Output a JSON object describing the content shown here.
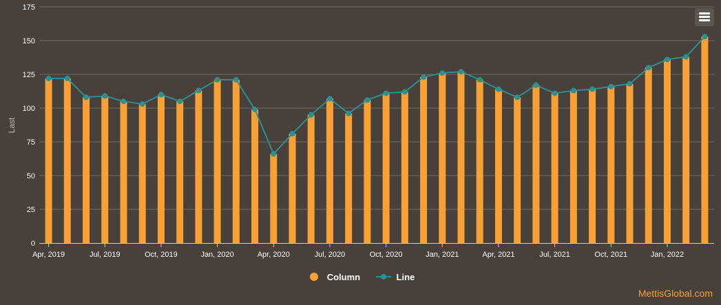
{
  "chart_data": {
    "type": "bar",
    "ylabel": "Last",
    "ylim": [
      0,
      175
    ],
    "y_ticks": [
      "0",
      "25",
      "50",
      "75",
      "100",
      "125",
      "150",
      "175"
    ],
    "x_ticks": [
      "Apr, 2019",
      "Jul, 2019",
      "Oct, 2019",
      "Jan, 2020",
      "Apr, 2020",
      "Jul, 2020",
      "Oct, 2020",
      "Jan, 2021",
      "Apr, 2021",
      "Jul, 2021",
      "Oct, 2021",
      "Jan, 2022"
    ],
    "grid": true,
    "legend": "bottom-center",
    "categories": [
      "Apr 2019",
      "May 2019",
      "Jun 2019",
      "Jul 2019",
      "Aug 2019",
      "Sep 2019",
      "Oct 2019",
      "Nov 2019",
      "Dec 2019",
      "Jan 2020",
      "Feb 2020",
      "Mar 2020",
      "Apr 2020",
      "May 2020",
      "Jun 2020",
      "Jul 2020",
      "Aug 2020",
      "Sep 2020",
      "Oct 2020",
      "Nov 2020",
      "Dec 2020",
      "Jan 2021",
      "Feb 2021",
      "Mar 2021",
      "Apr 2021",
      "May 2021",
      "Jun 2021",
      "Jul 2021",
      "Aug 2021",
      "Sep 2021",
      "Oct 2021",
      "Nov 2021",
      "Dec 2021",
      "Jan 2022",
      "Feb 2022",
      "Mar 2022"
    ],
    "series": [
      {
        "name": "Column",
        "type": "bar",
        "color": "#f7a035",
        "values": [
          122,
          122,
          108,
          109,
          105,
          103,
          110,
          105,
          113,
          121,
          121,
          99,
          66,
          81,
          95,
          107,
          96,
          106,
          111,
          112,
          123,
          126,
          127,
          121,
          114,
          108,
          117,
          111,
          113,
          114,
          116,
          118,
          130,
          136,
          138,
          153
        ]
      },
      {
        "name": "Line",
        "type": "line",
        "color": "#2b908f",
        "values": [
          122,
          122,
          108,
          109,
          105,
          103,
          110,
          105,
          113,
          121,
          121,
          99,
          66,
          81,
          95,
          107,
          96,
          106,
          111,
          112,
          123,
          126,
          127,
          121,
          114,
          108,
          117,
          111,
          113,
          114,
          116,
          118,
          130,
          136,
          138,
          153
        ]
      }
    ]
  },
  "credit": "MettisGlobal.com",
  "colors": {
    "background": "#47403b",
    "grid": "#6f6a66",
    "axis_text": "#ffffff",
    "ylabel_text": "#bdb8b3"
  }
}
